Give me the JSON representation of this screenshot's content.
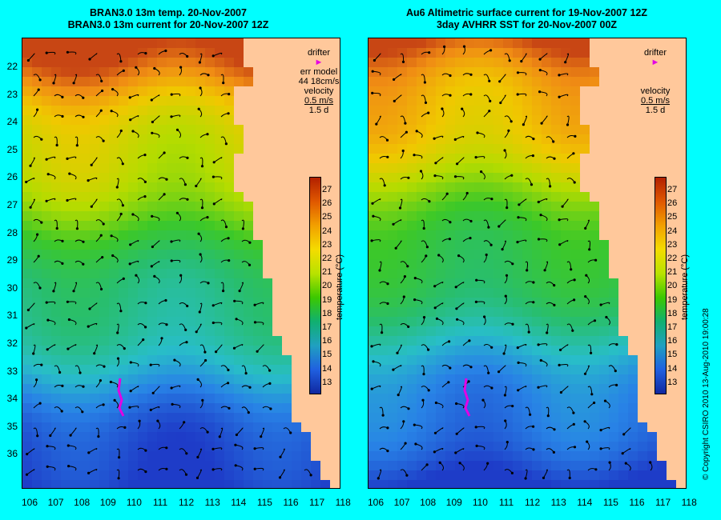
{
  "left_panel": {
    "title_line1": "BRAN3.0 13m temp. 20-Nov-2007",
    "title_line2": "BRAN3.0 13m current for 20-Nov-2007 12Z",
    "legend": {
      "drifter": "drifter",
      "err_model": "err model",
      "err_value": "44 18cm/s",
      "velocity": "velocity",
      "velocity_scale": "0.5 m/s",
      "duration": "1.5 d"
    }
  },
  "right_panel": {
    "title_line1": "Au6 Altimetric surface current for 19-Nov-2007 12Z",
    "title_line2": "3day AVHRR SST for 20-Nov-2007 00Z",
    "legend": {
      "drifter": "drifter",
      "velocity": "velocity",
      "velocity_scale": "0.5 m/s",
      "duration": "1.5 d"
    }
  },
  "y_axis_labels": [
    "22",
    "23",
    "24",
    "25",
    "26",
    "27",
    "28",
    "29",
    "30",
    "31",
    "32",
    "33",
    "34",
    "35",
    "36"
  ],
  "x_axis_labels": [
    "106",
    "107",
    "108",
    "109",
    "110",
    "111",
    "112",
    "113",
    "114",
    "115",
    "116",
    "117",
    "118"
  ],
  "colorbar": {
    "ticks": [
      "27",
      "26",
      "25",
      "24",
      "23",
      "22",
      "21",
      "20",
      "19",
      "18",
      "17",
      "16",
      "15",
      "14",
      "13"
    ],
    "title": "temperature (°C)"
  },
  "copyright": "© Copyright CSIRO 2010   13-Aug-2010 19:00:28",
  "colors": {
    "background": "#00ffff",
    "land": "#ffc89b",
    "drifter_track": "#e400e4",
    "contour": "#33dddd"
  }
}
